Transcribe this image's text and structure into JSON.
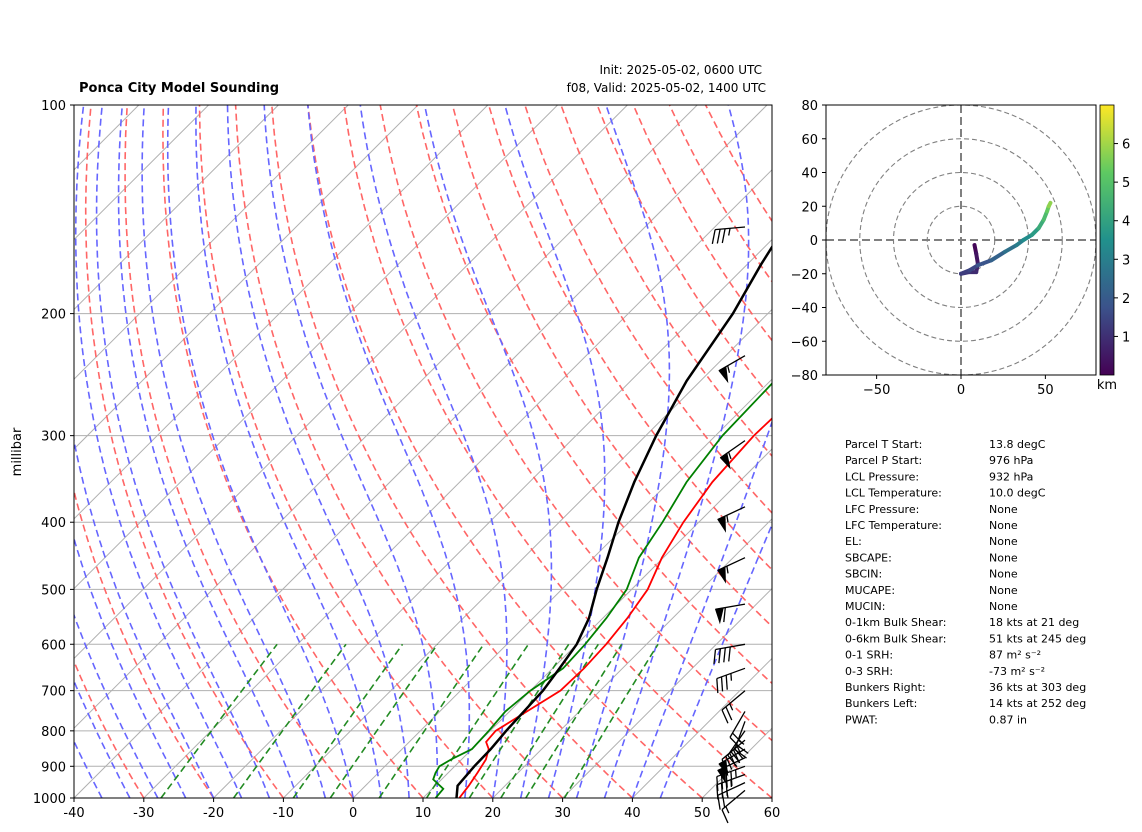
{
  "header": {
    "title": "Ponca City Model Sounding",
    "init": "Init: 2025-05-02, 0600 UTC",
    "valid": "f08, Valid: 2025-05-02, 1400 UTC"
  },
  "chart_data": [
    {
      "type": "line",
      "name": "skew-t",
      "ylabel": "millibar",
      "ylim": [
        1000,
        100
      ],
      "xlim": [
        -40,
        60
      ],
      "yscale": "log",
      "xticks": [
        -40,
        -30,
        -20,
        -10,
        0,
        10,
        20,
        30,
        40,
        50,
        60
      ],
      "yticks": [
        1000,
        900,
        800,
        700,
        600,
        500,
        400,
        300,
        200,
        100
      ],
      "grid": true,
      "series": [
        {
          "color": "#ff0000",
          "points": [
            [
              15.2,
              1000
            ],
            [
              14.8,
              960
            ],
            [
              14.2,
              920
            ],
            [
              13.5,
              880
            ],
            [
              12.4,
              850
            ],
            [
              11,
              830
            ],
            [
              10.8,
              800
            ],
            [
              12.5,
              750
            ],
            [
              14.3,
              700
            ],
            [
              14.5,
              650
            ],
            [
              14.2,
              600
            ],
            [
              13.5,
              550
            ],
            [
              12.3,
              500
            ],
            [
              9.8,
              450
            ],
            [
              7.8,
              400
            ],
            [
              6.2,
              350
            ],
            [
              5.5,
              300
            ],
            [
              5.9,
              255
            ],
            [
              8.2,
              225
            ],
            [
              17,
              180
            ],
            [
              38,
              135
            ],
            [
              41.5,
              100
            ]
          ]
        },
        {
          "color": "#008000",
          "points": [
            [
              11.8,
              1000
            ],
            [
              11.6,
              970
            ],
            [
              8.8,
              940
            ],
            [
              8.2,
              920
            ],
            [
              7.8,
              900
            ],
            [
              8.5,
              880
            ],
            [
              10,
              850
            ],
            [
              9.8,
              800
            ],
            [
              9.4,
              750
            ],
            [
              10,
              700
            ],
            [
              11.5,
              650
            ],
            [
              11.2,
              600
            ],
            [
              10.5,
              550
            ],
            [
              9.3,
              500
            ],
            [
              6.5,
              450
            ],
            [
              4.8,
              400
            ],
            [
              2.5,
              350
            ],
            [
              1,
              300
            ],
            [
              0.6,
              250
            ],
            [
              0.9,
              225
            ],
            [
              -4.6,
              185
            ],
            [
              -10,
              145
            ],
            [
              -1,
              120
            ],
            [
              6.3,
              100
            ]
          ]
        },
        {
          "color": "#000000",
          "points": [
            [
              14.8,
              1000
            ],
            [
              13.2,
              960
            ],
            [
              12.8,
              900
            ],
            [
              12.7,
              850
            ],
            [
              12.3,
              800
            ],
            [
              11.8,
              700
            ],
            [
              11,
              650
            ],
            [
              10,
              600
            ],
            [
              8,
              550
            ],
            [
              5,
              500
            ],
            [
              2,
              450
            ],
            [
              -1.5,
              400
            ],
            [
              -5,
              350
            ],
            [
              -8.5,
              300
            ],
            [
              -12,
              250
            ],
            [
              -15,
              200
            ],
            [
              -18,
              170
            ],
            [
              -20,
              150
            ],
            [
              -22,
              125
            ],
            [
              -23,
              100
            ]
          ]
        }
      ]
    },
    {
      "type": "scatter",
      "name": "hodograph",
      "xlim": [
        -80,
        80
      ],
      "ylim": [
        -80,
        80
      ],
      "xticks": [
        -50,
        0,
        50
      ],
      "yticks": [
        -80,
        -60,
        -40,
        -20,
        0,
        20,
        40,
        60,
        80
      ],
      "colorbar": {
        "label": "km",
        "ticks": [
          1,
          2,
          3,
          4,
          5,
          6
        ],
        "range": [
          0,
          7
        ]
      },
      "points": [
        [
          8,
          -3,
          0.1
        ],
        [
          9,
          -8,
          0.4
        ],
        [
          10,
          -14,
          0.7
        ],
        [
          9,
          -19,
          0.9
        ],
        [
          5,
          -19,
          1.1
        ],
        [
          0,
          -20,
          1.3
        ],
        [
          5,
          -18,
          1.5
        ],
        [
          10,
          -15,
          1.8
        ],
        [
          18,
          -12,
          2.2
        ],
        [
          26,
          -7,
          2.6
        ],
        [
          33,
          -3,
          3.0
        ],
        [
          37,
          0,
          3.4
        ],
        [
          42,
          3,
          3.8
        ],
        [
          46,
          7,
          4.3
        ],
        [
          49,
          12,
          4.8
        ],
        [
          51,
          17,
          5.3
        ],
        [
          52,
          20,
          5.8
        ],
        [
          53,
          22,
          6.3
        ]
      ]
    }
  ],
  "parameters": [
    {
      "label": "Parcel T Start:",
      "value": "13.8 degC"
    },
    {
      "label": "Parcel P Start:",
      "value": "976 hPa"
    },
    {
      "label": "LCL Pressure:",
      "value": "932 hPa"
    },
    {
      "label": "LCL Temperature:",
      "value": "10.0 degC"
    },
    {
      "label": "LFC Pressure:",
      "value": "None"
    },
    {
      "label": "LFC Temperature:",
      "value": "None"
    },
    {
      "label": "EL:",
      "value": "None"
    },
    {
      "label": "SBCAPE:",
      "value": "None"
    },
    {
      "label": "SBCIN:",
      "value": "None"
    },
    {
      "label": "MUCAPE:",
      "value": "None"
    },
    {
      "label": "MUCIN:",
      "value": "None"
    },
    {
      "label": "0-1km Bulk Shear:",
      "value": "18 kts at 21 deg"
    },
    {
      "label": "0-6km Bulk Shear:",
      "value": "51 kts at 245 deg"
    },
    {
      "label": "0-1 SRH:",
      "value": "87 m² s⁻²"
    },
    {
      "label": "0-3 SRH:",
      "value": "-73 m² s⁻²"
    },
    {
      "label": "Bunkers Right:",
      "value": "36 kts at 303 deg"
    },
    {
      "label": "Bunkers Left:",
      "value": "14 kts at 252 deg"
    },
    {
      "label": "PWAT:",
      "value": "0.87 in"
    }
  ],
  "wind_barbs": [
    {
      "pressure": 975,
      "speed": 15,
      "dir": 230
    },
    {
      "pressure": 950,
      "speed": 25,
      "dir": 245
    },
    {
      "pressure": 925,
      "speed": 35,
      "dir": 250
    },
    {
      "pressure": 900,
      "speed": 45,
      "dir": 250
    },
    {
      "pressure": 875,
      "speed": 50,
      "dir": 245
    },
    {
      "pressure": 850,
      "speed": 50,
      "dir": 240
    },
    {
      "pressure": 825,
      "speed": 45,
      "dir": 230
    },
    {
      "pressure": 800,
      "speed": 30,
      "dir": 215
    },
    {
      "pressure": 775,
      "speed": 25,
      "dir": 200
    },
    {
      "pressure": 750,
      "speed": 20,
      "dir": 210
    },
    {
      "pressure": 700,
      "speed": 25,
      "dir": 230
    },
    {
      "pressure": 650,
      "speed": 35,
      "dir": 250
    },
    {
      "pressure": 600,
      "speed": 40,
      "dir": 260
    },
    {
      "pressure": 525,
      "speed": 60,
      "dir": 260
    },
    {
      "pressure": 450,
      "speed": 55,
      "dir": 245
    },
    {
      "pressure": 380,
      "speed": 55,
      "dir": 245
    },
    {
      "pressure": 305,
      "speed": 55,
      "dir": 235
    },
    {
      "pressure": 230,
      "speed": 55,
      "dir": 240
    },
    {
      "pressure": 150,
      "speed": 35,
      "dir": 265
    }
  ],
  "style": {
    "temp_color": "#ff0000",
    "dewpoint_color": "#008000",
    "parcel_color": "#000000",
    "dry_adiabat_color": "#ff6666",
    "moist_adiabat_color": "#6666ff",
    "mixing_ratio_color": "#228b22"
  }
}
